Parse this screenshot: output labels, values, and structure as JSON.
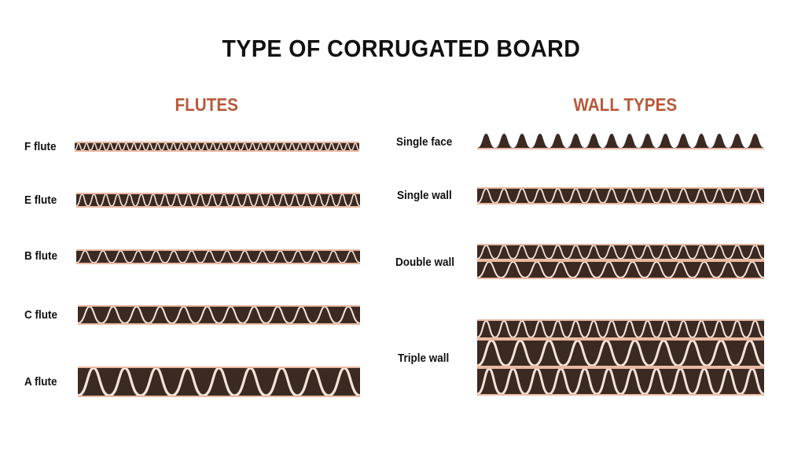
{
  "title": "TYPE OF CORRUGATED BOARD",
  "flutes": {
    "heading": "FLUTES",
    "items": [
      "F flute",
      "E flute",
      "B flute",
      "C flute",
      "A flute"
    ]
  },
  "wall_types": {
    "heading": "WALL TYPES",
    "items": [
      "Single face",
      "Single wall",
      "Double wall",
      "Triple wall"
    ]
  },
  "colors": {
    "board": "#3b2a22",
    "liner": "#e9b9a2",
    "flute": "#f5e3d8",
    "heading": "#b85a3c"
  }
}
